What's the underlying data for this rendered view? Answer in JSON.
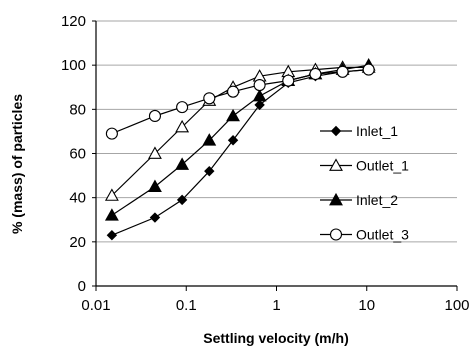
{
  "chart_data": {
    "type": "scatter",
    "title": "",
    "xlabel": "Settling velocity (m/h)",
    "ylabel": "% (mass) of particles",
    "xscale": "log",
    "xlim": [
      0.01,
      100
    ],
    "ylim": [
      0,
      120
    ],
    "x_ticks": [
      "0.01",
      "0.1",
      "1",
      "10",
      "100"
    ],
    "y_ticks": [
      "0",
      "20",
      "40",
      "60",
      "80",
      "100",
      "120"
    ],
    "grid": "horizontal",
    "legend_position": "right",
    "lines": "connected",
    "series": [
      {
        "name": "Inlet_1",
        "marker": "diamond-filled",
        "x": [
          0.015,
          0.045,
          0.09,
          0.18,
          0.33,
          0.65,
          1.35,
          2.7,
          5.4,
          10.5
        ],
        "y": [
          23,
          31,
          39,
          52,
          66,
          82,
          92,
          95,
          97,
          98
        ]
      },
      {
        "name": "Outlet_1",
        "marker": "triangle-open",
        "x": [
          0.015,
          0.045,
          0.09,
          0.18,
          0.33,
          0.65,
          1.35,
          2.7,
          5.4,
          10.5
        ],
        "y": [
          41,
          60,
          72,
          84,
          90,
          95,
          97,
          98,
          99,
          99
        ]
      },
      {
        "name": "Inlet_2",
        "marker": "triangle-filled",
        "x": [
          0.015,
          0.045,
          0.09,
          0.18,
          0.33,
          0.65,
          1.35,
          2.7,
          5.4,
          10.5
        ],
        "y": [
          32,
          45,
          55,
          66,
          77,
          86,
          93,
          96,
          98,
          100
        ]
      },
      {
        "name": "Outlet_3",
        "marker": "circle-open",
        "x": [
          0.015,
          0.045,
          0.09,
          0.18,
          0.33,
          0.65,
          1.35,
          2.7,
          5.4,
          10.5
        ],
        "y": [
          69,
          77,
          81,
          85,
          88,
          91,
          93,
          96,
          97,
          98
        ]
      }
    ]
  }
}
